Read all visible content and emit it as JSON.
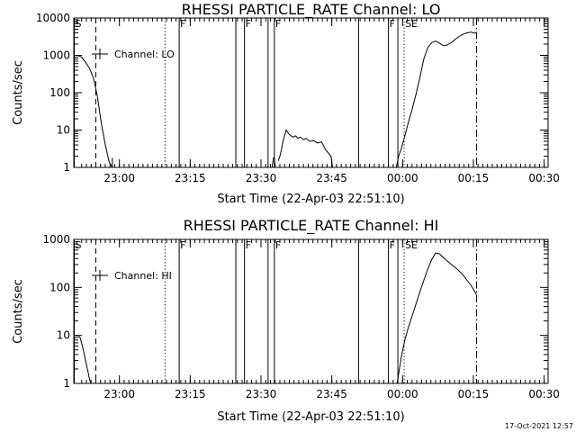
{
  "footer": {
    "timestamp": "17-Oct-2021 12:57"
  },
  "chart_data": [
    {
      "type": "line",
      "title": "RHESSI PARTICLE_RATE Channel: LO",
      "xlabel": "Start Time (22-Apr-03 22:51:10)",
      "ylabel": "Counts/sec",
      "xlim": [
        -50,
        2350
      ],
      "ylim": [
        1,
        10000
      ],
      "log_y": true,
      "x_ticks": [
        {
          "x": 530,
          "label": "23:00"
        },
        {
          "x": 1430,
          "label": "23:15"
        },
        {
          "x": 2330,
          "label": "23:30"
        },
        {
          "x": 3230,
          "label": "23:45"
        },
        {
          "x": 4130,
          "label": "00:00"
        },
        {
          "x": 5030,
          "label": "00:15"
        },
        {
          "x": 5930,
          "label": "00:30"
        }
      ],
      "y_ticks": [
        {
          "y": 1,
          "label": "1"
        },
        {
          "y": 10,
          "label": "10"
        },
        {
          "y": 100,
          "label": "100"
        },
        {
          "y": 1000,
          "label": "1000"
        },
        {
          "y": 10000,
          "label": "10000"
        }
      ],
      "legend": {
        "position": "top-left",
        "entries": [
          "Channel: LO"
        ]
      },
      "markers": [
        {
          "x": -50,
          "style": "solid",
          "label": "S"
        },
        {
          "x": 230,
          "style": "dashed",
          "label": ""
        },
        {
          "x": 1110,
          "style": "dotted",
          "label": ""
        },
        {
          "x": 1290,
          "style": "solid",
          "label": "F"
        },
        {
          "x": 2010,
          "style": "solid",
          "label": ""
        },
        {
          "x": 2120,
          "style": "solid",
          "label": "F"
        },
        {
          "x": 2420,
          "style": "solid",
          "label": ""
        },
        {
          "x": 2500,
          "style": "solid",
          "label": "F"
        },
        {
          "x": 3570,
          "style": "solid",
          "label": ""
        },
        {
          "x": 3950,
          "style": "solid",
          "label": "F"
        },
        {
          "x": 4070,
          "style": "solid",
          "label": ""
        },
        {
          "x": 4150,
          "style": "dotted",
          "label": "SE"
        },
        {
          "x": 5070,
          "style": "dashdot",
          "label": ""
        }
      ],
      "series": [
        {
          "name": "Channel: LO",
          "segments": [
            {
              "x": [
                -50,
                0,
                50,
                100,
                150,
                200,
                250,
                300,
                350,
                400,
                440
              ],
              "y": [
                1000,
                1000,
                900,
                650,
                450,
                250,
                80,
                15,
                4,
                1.4,
                1
              ]
            },
            {
              "x": [
                440,
                440
              ],
              "y": [
                1,
                1.8
              ]
            },
            {
              "x": [
                2470,
                2490,
                2500,
                2510,
                2530
              ],
              "y": [
                1,
                1.8,
                1.8,
                1,
                1
              ]
            },
            {
              "x": [
                2550,
                2570,
                2590,
                2610,
                2630,
                2650,
                2680,
                2710,
                2740,
                2770,
                2800,
                2830,
                2870,
                2900,
                2950,
                3000,
                3050,
                3100,
                3150,
                3220,
                3240
              ],
              "y": [
                1.5,
                2,
                3,
                5,
                7,
                10,
                8,
                7,
                6.5,
                7,
                6,
                6.5,
                5.5,
                6,
                5,
                5.2,
                4.5,
                4.8,
                3,
                2,
                1
              ]
            },
            {
              "x": [
                4050,
                4080,
                4110,
                4150,
                4200,
                4250,
                4300,
                4350,
                4400,
                4450,
                4500,
                4550,
                4600,
                4650,
                4700,
                4750,
                4800,
                4850,
                4900,
                4950,
                5000,
                5050,
                5070
              ],
              "y": [
                1,
                2,
                3,
                6,
                15,
                35,
                90,
                250,
                800,
                1600,
                2200,
                2400,
                2100,
                1800,
                1900,
                2200,
                2700,
                3200,
                3700,
                4000,
                4200,
                3900,
                4100
              ]
            }
          ]
        }
      ]
    },
    {
      "type": "line",
      "title": "RHESSI PARTICLE_RATE Channel: HI",
      "xlabel": "Start Time (22-Apr-03 22:51:10)",
      "ylabel": "Counts/sec",
      "xlim": [
        -50,
        2350
      ],
      "ylim": [
        1,
        1000
      ],
      "log_y": true,
      "x_ticks": [
        {
          "x": 530,
          "label": "23:00"
        },
        {
          "x": 1430,
          "label": "23:15"
        },
        {
          "x": 2330,
          "label": "23:30"
        },
        {
          "x": 3230,
          "label": "23:45"
        },
        {
          "x": 4130,
          "label": "00:00"
        },
        {
          "x": 5030,
          "label": "00:15"
        },
        {
          "x": 5930,
          "label": "00:30"
        }
      ],
      "y_ticks": [
        {
          "y": 1,
          "label": "1"
        },
        {
          "y": 10,
          "label": "10"
        },
        {
          "y": 100,
          "label": "100"
        },
        {
          "y": 1000,
          "label": "1000"
        }
      ],
      "legend": {
        "position": "top-left",
        "entries": [
          "Channel: HI"
        ]
      },
      "markers": [
        {
          "x": -50,
          "style": "solid",
          "label": "S"
        },
        {
          "x": 230,
          "style": "dashed",
          "label": ""
        },
        {
          "x": 1110,
          "style": "dotted",
          "label": ""
        },
        {
          "x": 1290,
          "style": "solid",
          "label": "F"
        },
        {
          "x": 2010,
          "style": "solid",
          "label": ""
        },
        {
          "x": 2120,
          "style": "solid",
          "label": "F"
        },
        {
          "x": 2420,
          "style": "solid",
          "label": ""
        },
        {
          "x": 2500,
          "style": "solid",
          "label": "F"
        },
        {
          "x": 3570,
          "style": "solid",
          "label": ""
        },
        {
          "x": 3950,
          "style": "solid",
          "label": "F"
        },
        {
          "x": 4070,
          "style": "solid",
          "label": ""
        },
        {
          "x": 4150,
          "style": "dotted",
          "label": "SE"
        },
        {
          "x": 5070,
          "style": "dashdot",
          "label": ""
        }
      ],
      "series": [
        {
          "name": "Channel: HI",
          "segments": [
            {
              "x": [
                -50,
                0,
                30,
                60,
                100,
                130,
                150,
                170
              ],
              "y": [
                10,
                10,
                9,
                6,
                3,
                1.8,
                1.2,
                1
              ]
            },
            {
              "x": [
                4060,
                4090,
                4120,
                4160,
                4200,
                4250,
                4300,
                4350,
                4400,
                4450,
                4500,
                4550,
                4600,
                4650,
                4700,
                4750,
                4800,
                4850,
                4900,
                4950,
                5000,
                5050,
                5070
              ],
              "y": [
                1,
                2,
                4,
                8,
                14,
                25,
                45,
                80,
                140,
                240,
                380,
                520,
                500,
                420,
                350,
                300,
                260,
                220,
                180,
                140,
                110,
                80,
                70
              ]
            }
          ]
        }
      ]
    }
  ]
}
